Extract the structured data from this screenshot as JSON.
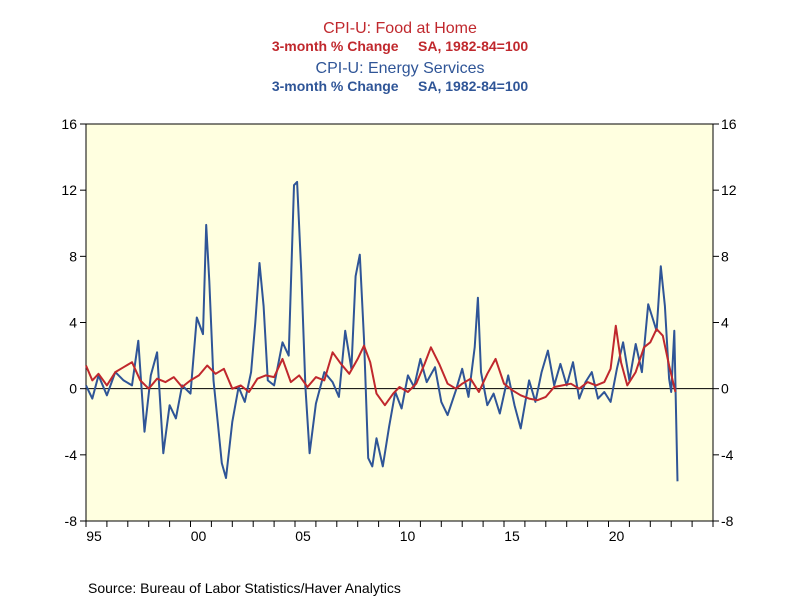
{
  "chart_data": {
    "type": "line",
    "titles": [
      {
        "text": "CPI-U: Food at Home",
        "color": "#c0282d"
      },
      {
        "text": "3-month % Change     SA, 1982-84=100",
        "color": "#c0282d"
      },
      {
        "text": "CPI-U: Energy Services",
        "color": "#2f5597"
      },
      {
        "text": "3-month % Change     SA, 1982-84=100",
        "color": "#2f5597"
      }
    ],
    "source": "Source:  Bureau of Labor Statistics/Haver Analytics",
    "ylim": [
      -8,
      16
    ],
    "yticks": [
      "-8",
      "-4",
      "0",
      "4",
      "8",
      "12",
      "16"
    ],
    "xlim": [
      1995,
      2025
    ],
    "xtick_labels": [
      {
        "year": 1995,
        "label": "95"
      },
      {
        "year": 2000,
        "label": "00"
      },
      {
        "year": 2005,
        "label": "05"
      },
      {
        "year": 2010,
        "label": "10"
      },
      {
        "year": 2015,
        "label": "15"
      },
      {
        "year": 2020,
        "label": "20"
      }
    ],
    "plot_background": "#ffffe0",
    "grid": false,
    "zero_line": true,
    "series": [
      {
        "name": "CPI-U: Food at Home",
        "color": "#c0282d",
        "points": [
          [
            1995.0,
            1.4
          ],
          [
            1995.3,
            0.5
          ],
          [
            1995.6,
            0.9
          ],
          [
            1996.0,
            0.2
          ],
          [
            1996.4,
            1.0
          ],
          [
            1996.8,
            1.3
          ],
          [
            1997.2,
            1.6
          ],
          [
            1997.6,
            0.5
          ],
          [
            1998.0,
            0.0
          ],
          [
            1998.4,
            0.6
          ],
          [
            1998.8,
            0.4
          ],
          [
            1999.2,
            0.7
          ],
          [
            1999.6,
            0.1
          ],
          [
            2000.0,
            0.5
          ],
          [
            2000.4,
            0.8
          ],
          [
            2000.8,
            1.4
          ],
          [
            2001.2,
            0.9
          ],
          [
            2001.6,
            1.2
          ],
          [
            2002.0,
            0.0
          ],
          [
            2002.4,
            0.2
          ],
          [
            2002.8,
            -0.2
          ],
          [
            2003.2,
            0.6
          ],
          [
            2003.6,
            0.8
          ],
          [
            2004.0,
            0.7
          ],
          [
            2004.4,
            1.8
          ],
          [
            2004.8,
            0.4
          ],
          [
            2005.2,
            0.8
          ],
          [
            2005.6,
            0.1
          ],
          [
            2006.0,
            0.7
          ],
          [
            2006.4,
            0.5
          ],
          [
            2006.8,
            2.2
          ],
          [
            2007.2,
            1.5
          ],
          [
            2007.6,
            0.9
          ],
          [
            2008.0,
            1.8
          ],
          [
            2008.3,
            2.6
          ],
          [
            2008.6,
            1.6
          ],
          [
            2008.9,
            -0.3
          ],
          [
            2009.3,
            -1.0
          ],
          [
            2009.7,
            -0.3
          ],
          [
            2010.0,
            0.1
          ],
          [
            2010.4,
            -0.2
          ],
          [
            2010.8,
            0.3
          ],
          [
            2011.2,
            1.5
          ],
          [
            2011.5,
            2.5
          ],
          [
            2011.9,
            1.5
          ],
          [
            2012.3,
            0.3
          ],
          [
            2012.7,
            0.0
          ],
          [
            2013.0,
            0.3
          ],
          [
            2013.4,
            0.6
          ],
          [
            2013.8,
            -0.2
          ],
          [
            2014.2,
            0.9
          ],
          [
            2014.6,
            1.8
          ],
          [
            2015.0,
            0.3
          ],
          [
            2015.4,
            -0.1
          ],
          [
            2015.8,
            -0.4
          ],
          [
            2016.2,
            -0.6
          ],
          [
            2016.6,
            -0.7
          ],
          [
            2017.0,
            -0.5
          ],
          [
            2017.4,
            0.1
          ],
          [
            2017.8,
            0.2
          ],
          [
            2018.2,
            0.3
          ],
          [
            2018.6,
            0.0
          ],
          [
            2019.0,
            0.4
          ],
          [
            2019.4,
            0.2
          ],
          [
            2019.8,
            0.4
          ],
          [
            2020.1,
            1.2
          ],
          [
            2020.35,
            3.8
          ],
          [
            2020.6,
            1.6
          ],
          [
            2020.9,
            0.2
          ],
          [
            2021.3,
            1.0
          ],
          [
            2021.7,
            2.5
          ],
          [
            2022.0,
            2.8
          ],
          [
            2022.3,
            3.6
          ],
          [
            2022.6,
            3.2
          ],
          [
            2022.9,
            1.4
          ],
          [
            2023.2,
            -0.2
          ]
        ]
      },
      {
        "name": "CPI-U: Energy Services",
        "color": "#2f5597",
        "points": [
          [
            1995.0,
            0.2
          ],
          [
            1995.3,
            -0.6
          ],
          [
            1995.6,
            0.8
          ],
          [
            1996.0,
            -0.4
          ],
          [
            1996.4,
            1.0
          ],
          [
            1996.8,
            0.5
          ],
          [
            1997.2,
            0.2
          ],
          [
            1997.5,
            2.9
          ],
          [
            1997.8,
            -2.6
          ],
          [
            1998.1,
            0.8
          ],
          [
            1998.4,
            2.2
          ],
          [
            1998.7,
            -3.9
          ],
          [
            1999.0,
            -1.0
          ],
          [
            1999.3,
            -1.8
          ],
          [
            1999.6,
            0.2
          ],
          [
            2000.0,
            -0.3
          ],
          [
            2000.3,
            4.3
          ],
          [
            2000.6,
            3.3
          ],
          [
            2000.75,
            9.9
          ],
          [
            2000.9,
            6.5
          ],
          [
            2001.1,
            0.5
          ],
          [
            2001.3,
            -2.0
          ],
          [
            2001.5,
            -4.5
          ],
          [
            2001.7,
            -5.4
          ],
          [
            2002.0,
            -2.0
          ],
          [
            2002.3,
            0.1
          ],
          [
            2002.6,
            -0.8
          ],
          [
            2002.9,
            1.0
          ],
          [
            2003.1,
            4.0
          ],
          [
            2003.3,
            7.6
          ],
          [
            2003.5,
            5.0
          ],
          [
            2003.7,
            0.5
          ],
          [
            2004.0,
            0.2
          ],
          [
            2004.4,
            2.8
          ],
          [
            2004.7,
            2.0
          ],
          [
            2004.95,
            12.3
          ],
          [
            2005.1,
            12.5
          ],
          [
            2005.3,
            7.0
          ],
          [
            2005.5,
            0.1
          ],
          [
            2005.7,
            -3.9
          ],
          [
            2006.0,
            -0.9
          ],
          [
            2006.4,
            1.0
          ],
          [
            2006.8,
            0.4
          ],
          [
            2007.1,
            -0.5
          ],
          [
            2007.4,
            3.5
          ],
          [
            2007.7,
            1.2
          ],
          [
            2007.9,
            6.8
          ],
          [
            2008.1,
            8.1
          ],
          [
            2008.3,
            3.0
          ],
          [
            2008.5,
            -4.2
          ],
          [
            2008.7,
            -4.7
          ],
          [
            2008.9,
            -3.0
          ],
          [
            2009.2,
            -4.7
          ],
          [
            2009.5,
            -2.3
          ],
          [
            2009.8,
            -0.2
          ],
          [
            2010.1,
            -1.2
          ],
          [
            2010.4,
            0.8
          ],
          [
            2010.7,
            0.1
          ],
          [
            2011.0,
            1.8
          ],
          [
            2011.3,
            0.4
          ],
          [
            2011.7,
            1.3
          ],
          [
            2012.0,
            -0.8
          ],
          [
            2012.3,
            -1.6
          ],
          [
            2012.7,
            -0.1
          ],
          [
            2013.0,
            1.2
          ],
          [
            2013.3,
            -0.5
          ],
          [
            2013.6,
            2.5
          ],
          [
            2013.75,
            5.5
          ],
          [
            2013.9,
            1.0
          ],
          [
            2014.2,
            -1.0
          ],
          [
            2014.5,
            -0.3
          ],
          [
            2014.8,
            -1.5
          ],
          [
            2015.2,
            0.8
          ],
          [
            2015.5,
            -1.0
          ],
          [
            2015.8,
            -2.4
          ],
          [
            2016.2,
            0.5
          ],
          [
            2016.5,
            -0.8
          ],
          [
            2016.8,
            1.0
          ],
          [
            2017.1,
            2.3
          ],
          [
            2017.4,
            0.2
          ],
          [
            2017.7,
            1.5
          ],
          [
            2018.0,
            0.2
          ],
          [
            2018.3,
            1.6
          ],
          [
            2018.6,
            -0.6
          ],
          [
            2018.9,
            0.4
          ],
          [
            2019.2,
            1.0
          ],
          [
            2019.5,
            -0.6
          ],
          [
            2019.8,
            -0.2
          ],
          [
            2020.1,
            -0.8
          ],
          [
            2020.4,
            1.2
          ],
          [
            2020.7,
            2.8
          ],
          [
            2021.0,
            0.5
          ],
          [
            2021.3,
            2.7
          ],
          [
            2021.6,
            1.0
          ],
          [
            2021.9,
            5.1
          ],
          [
            2022.1,
            4.3
          ],
          [
            2022.3,
            3.5
          ],
          [
            2022.5,
            7.4
          ],
          [
            2022.7,
            5.0
          ],
          [
            2022.9,
            0.6
          ],
          [
            2023.0,
            -0.2
          ],
          [
            2023.15,
            3.5
          ],
          [
            2023.3,
            -5.6
          ]
        ]
      }
    ]
  }
}
